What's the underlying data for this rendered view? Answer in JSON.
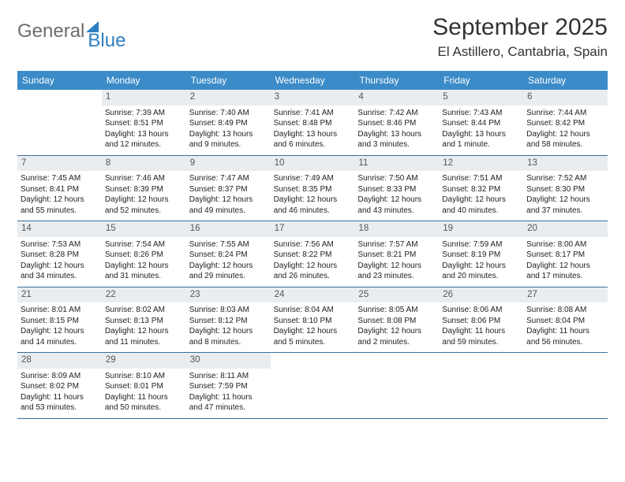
{
  "logo": {
    "part1": "General",
    "part2": "Blue"
  },
  "title": {
    "month": "September 2025",
    "location": "El Astillero, Cantabria, Spain"
  },
  "colors": {
    "header_bg": "#3b8bc8",
    "header_text": "#ffffff",
    "daynum_bg": "#e9edf0",
    "rule": "#3b6f9a",
    "logo_gray": "#6b6b6b",
    "logo_blue": "#2f7fbf"
  },
  "dayNames": [
    "Sunday",
    "Monday",
    "Tuesday",
    "Wednesday",
    "Thursday",
    "Friday",
    "Saturday"
  ],
  "weeks": [
    [
      {
        "empty": true
      },
      {
        "n": "1",
        "sr": "Sunrise: 7:39 AM",
        "ss": "Sunset: 8:51 PM",
        "dl": "Daylight: 13 hours and 12 minutes."
      },
      {
        "n": "2",
        "sr": "Sunrise: 7:40 AM",
        "ss": "Sunset: 8:49 PM",
        "dl": "Daylight: 13 hours and 9 minutes."
      },
      {
        "n": "3",
        "sr": "Sunrise: 7:41 AM",
        "ss": "Sunset: 8:48 PM",
        "dl": "Daylight: 13 hours and 6 minutes."
      },
      {
        "n": "4",
        "sr": "Sunrise: 7:42 AM",
        "ss": "Sunset: 8:46 PM",
        "dl": "Daylight: 13 hours and 3 minutes."
      },
      {
        "n": "5",
        "sr": "Sunrise: 7:43 AM",
        "ss": "Sunset: 8:44 PM",
        "dl": "Daylight: 13 hours and 1 minute."
      },
      {
        "n": "6",
        "sr": "Sunrise: 7:44 AM",
        "ss": "Sunset: 8:42 PM",
        "dl": "Daylight: 12 hours and 58 minutes."
      }
    ],
    [
      {
        "n": "7",
        "sr": "Sunrise: 7:45 AM",
        "ss": "Sunset: 8:41 PM",
        "dl": "Daylight: 12 hours and 55 minutes."
      },
      {
        "n": "8",
        "sr": "Sunrise: 7:46 AM",
        "ss": "Sunset: 8:39 PM",
        "dl": "Daylight: 12 hours and 52 minutes."
      },
      {
        "n": "9",
        "sr": "Sunrise: 7:47 AM",
        "ss": "Sunset: 8:37 PM",
        "dl": "Daylight: 12 hours and 49 minutes."
      },
      {
        "n": "10",
        "sr": "Sunrise: 7:49 AM",
        "ss": "Sunset: 8:35 PM",
        "dl": "Daylight: 12 hours and 46 minutes."
      },
      {
        "n": "11",
        "sr": "Sunrise: 7:50 AM",
        "ss": "Sunset: 8:33 PM",
        "dl": "Daylight: 12 hours and 43 minutes."
      },
      {
        "n": "12",
        "sr": "Sunrise: 7:51 AM",
        "ss": "Sunset: 8:32 PM",
        "dl": "Daylight: 12 hours and 40 minutes."
      },
      {
        "n": "13",
        "sr": "Sunrise: 7:52 AM",
        "ss": "Sunset: 8:30 PM",
        "dl": "Daylight: 12 hours and 37 minutes."
      }
    ],
    [
      {
        "n": "14",
        "sr": "Sunrise: 7:53 AM",
        "ss": "Sunset: 8:28 PM",
        "dl": "Daylight: 12 hours and 34 minutes."
      },
      {
        "n": "15",
        "sr": "Sunrise: 7:54 AM",
        "ss": "Sunset: 8:26 PM",
        "dl": "Daylight: 12 hours and 31 minutes."
      },
      {
        "n": "16",
        "sr": "Sunrise: 7:55 AM",
        "ss": "Sunset: 8:24 PM",
        "dl": "Daylight: 12 hours and 29 minutes."
      },
      {
        "n": "17",
        "sr": "Sunrise: 7:56 AM",
        "ss": "Sunset: 8:22 PM",
        "dl": "Daylight: 12 hours and 26 minutes."
      },
      {
        "n": "18",
        "sr": "Sunrise: 7:57 AM",
        "ss": "Sunset: 8:21 PM",
        "dl": "Daylight: 12 hours and 23 minutes."
      },
      {
        "n": "19",
        "sr": "Sunrise: 7:59 AM",
        "ss": "Sunset: 8:19 PM",
        "dl": "Daylight: 12 hours and 20 minutes."
      },
      {
        "n": "20",
        "sr": "Sunrise: 8:00 AM",
        "ss": "Sunset: 8:17 PM",
        "dl": "Daylight: 12 hours and 17 minutes."
      }
    ],
    [
      {
        "n": "21",
        "sr": "Sunrise: 8:01 AM",
        "ss": "Sunset: 8:15 PM",
        "dl": "Daylight: 12 hours and 14 minutes."
      },
      {
        "n": "22",
        "sr": "Sunrise: 8:02 AM",
        "ss": "Sunset: 8:13 PM",
        "dl": "Daylight: 12 hours and 11 minutes."
      },
      {
        "n": "23",
        "sr": "Sunrise: 8:03 AM",
        "ss": "Sunset: 8:12 PM",
        "dl": "Daylight: 12 hours and 8 minutes."
      },
      {
        "n": "24",
        "sr": "Sunrise: 8:04 AM",
        "ss": "Sunset: 8:10 PM",
        "dl": "Daylight: 12 hours and 5 minutes."
      },
      {
        "n": "25",
        "sr": "Sunrise: 8:05 AM",
        "ss": "Sunset: 8:08 PM",
        "dl": "Daylight: 12 hours and 2 minutes."
      },
      {
        "n": "26",
        "sr": "Sunrise: 8:06 AM",
        "ss": "Sunset: 8:06 PM",
        "dl": "Daylight: 11 hours and 59 minutes."
      },
      {
        "n": "27",
        "sr": "Sunrise: 8:08 AM",
        "ss": "Sunset: 8:04 PM",
        "dl": "Daylight: 11 hours and 56 minutes."
      }
    ],
    [
      {
        "n": "28",
        "sr": "Sunrise: 8:09 AM",
        "ss": "Sunset: 8:02 PM",
        "dl": "Daylight: 11 hours and 53 minutes."
      },
      {
        "n": "29",
        "sr": "Sunrise: 8:10 AM",
        "ss": "Sunset: 8:01 PM",
        "dl": "Daylight: 11 hours and 50 minutes."
      },
      {
        "n": "30",
        "sr": "Sunrise: 8:11 AM",
        "ss": "Sunset: 7:59 PM",
        "dl": "Daylight: 11 hours and 47 minutes."
      },
      {
        "empty": true
      },
      {
        "empty": true
      },
      {
        "empty": true
      },
      {
        "empty": true
      }
    ]
  ]
}
